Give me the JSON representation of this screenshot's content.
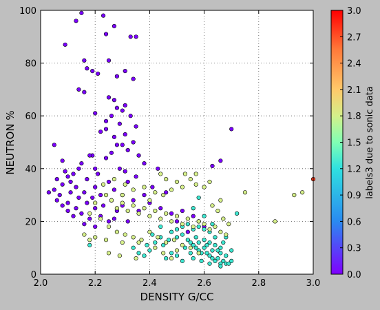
{
  "chart_data": {
    "type": "scatter",
    "title": "",
    "xlabel": "DENSITY  G/CC",
    "ylabel": "NEUTRON  %",
    "xlim": [
      2.0,
      3.0
    ],
    "ylim": [
      0,
      100
    ],
    "xticks": [
      "2.0",
      "2.2",
      "2.4",
      "2.6",
      "2.8",
      "3.0"
    ],
    "yticks": [
      "0",
      "20",
      "40",
      "60",
      "80",
      "100"
    ],
    "grid": true,
    "colorbar": {
      "label": "labels3 due to sonic data",
      "range": [
        0.0,
        3.0
      ],
      "ticks": [
        "0.0",
        "0.3",
        "0.6",
        "0.9",
        "1.2",
        "1.5",
        "1.8",
        "2.1",
        "2.4",
        "2.7",
        "3.0"
      ],
      "colormap": "rainbow"
    },
    "series": [
      {
        "label_value": 0.0,
        "color": "#7a00ff",
        "points": [
          [
            2.15,
            99
          ],
          [
            2.23,
            98
          ],
          [
            2.13,
            96
          ],
          [
            2.27,
            94
          ],
          [
            2.24,
            91
          ],
          [
            2.33,
            90
          ],
          [
            2.35,
            90
          ],
          [
            2.09,
            87
          ],
          [
            2.16,
            81
          ],
          [
            2.25,
            81
          ],
          [
            2.17,
            78
          ],
          [
            2.19,
            77
          ],
          [
            2.31,
            77
          ],
          [
            2.21,
            76
          ],
          [
            2.28,
            75
          ],
          [
            2.34,
            74
          ],
          [
            2.14,
            70
          ],
          [
            2.16,
            69
          ],
          [
            2.25,
            67
          ],
          [
            2.27,
            66
          ],
          [
            2.31,
            64
          ],
          [
            2.28,
            63
          ],
          [
            2.3,
            62
          ],
          [
            2.2,
            61
          ],
          [
            2.26,
            60
          ],
          [
            2.33,
            60
          ],
          [
            2.7,
            55
          ],
          [
            2.24,
            55
          ],
          [
            2.29,
            57
          ],
          [
            2.31,
            53
          ],
          [
            2.27,
            52
          ],
          [
            2.34,
            50
          ],
          [
            2.28,
            49
          ],
          [
            2.05,
            49
          ],
          [
            2.32,
            47
          ],
          [
            2.36,
            45
          ],
          [
            2.19,
            45
          ],
          [
            2.24,
            44
          ],
          [
            2.08,
            43
          ],
          [
            2.15,
            42
          ],
          [
            2.66,
            43
          ],
          [
            2.38,
            42
          ],
          [
            2.63,
            41
          ],
          [
            2.43,
            40
          ],
          [
            2.2,
            40
          ],
          [
            2.29,
            40
          ],
          [
            2.12,
            38
          ],
          [
            2.1,
            37
          ],
          [
            2.06,
            36
          ],
          [
            2.17,
            36
          ],
          [
            2.25,
            35
          ],
          [
            2.32,
            35
          ],
          [
            2.08,
            34
          ],
          [
            2.13,
            33
          ],
          [
            2.2,
            33
          ],
          [
            2.27,
            32
          ],
          [
            2.05,
            32
          ],
          [
            2.11,
            31
          ],
          [
            2.16,
            31
          ],
          [
            2.22,
            30
          ],
          [
            2.3,
            30
          ],
          [
            2.38,
            30
          ],
          [
            2.07,
            30
          ],
          [
            2.14,
            29
          ],
          [
            2.19,
            29
          ],
          [
            2.26,
            28
          ],
          [
            2.34,
            28
          ],
          [
            2.1,
            27
          ],
          [
            2.17,
            27
          ],
          [
            2.23,
            26
          ],
          [
            2.3,
            26
          ],
          [
            2.08,
            26
          ],
          [
            2.13,
            25
          ],
          [
            2.2,
            25
          ],
          [
            2.28,
            24
          ],
          [
            2.36,
            24
          ],
          [
            2.15,
            23
          ],
          [
            2.22,
            22
          ],
          [
            2.18,
            21
          ],
          [
            2.25,
            20
          ],
          [
            2.12,
            22
          ],
          [
            2.27,
            21
          ],
          [
            2.32,
            20
          ],
          [
            2.4,
            27
          ],
          [
            2.44,
            25
          ],
          [
            2.48,
            23
          ],
          [
            2.52,
            24
          ],
          [
            2.56,
            22
          ],
          [
            2.6,
            18
          ],
          [
            2.41,
            33
          ],
          [
            2.46,
            31
          ],
          [
            2.35,
            37
          ],
          [
            2.31,
            39
          ],
          [
            2.21,
            38
          ],
          [
            2.11,
            35
          ],
          [
            2.24,
            58
          ],
          [
            2.22,
            54
          ],
          [
            2.35,
            56
          ],
          [
            2.3,
            49
          ],
          [
            2.26,
            46
          ],
          [
            2.18,
            45
          ],
          [
            2.14,
            40
          ],
          [
            2.09,
            39
          ],
          [
            2.03,
            31
          ],
          [
            2.06,
            28
          ],
          [
            2.1,
            24
          ],
          [
            2.16,
            19
          ],
          [
            2.2,
            18
          ],
          [
            2.54,
            16
          ],
          [
            2.5,
            20
          ]
        ]
      },
      {
        "label_value": 1.2,
        "color": "#3de6d0",
        "points": [
          [
            2.44,
            18
          ],
          [
            2.48,
            16
          ],
          [
            2.5,
            14
          ],
          [
            2.52,
            15
          ],
          [
            2.54,
            13
          ],
          [
            2.55,
            12
          ],
          [
            2.56,
            11
          ],
          [
            2.57,
            10
          ],
          [
            2.58,
            9
          ],
          [
            2.59,
            8
          ],
          [
            2.6,
            10
          ],
          [
            2.61,
            8
          ],
          [
            2.62,
            7
          ],
          [
            2.63,
            6
          ],
          [
            2.64,
            5
          ],
          [
            2.65,
            6
          ],
          [
            2.66,
            4
          ],
          [
            2.67,
            5
          ],
          [
            2.68,
            4
          ],
          [
            2.57,
            14
          ],
          [
            2.6,
            13
          ],
          [
            2.62,
            12
          ],
          [
            2.64,
            11
          ],
          [
            2.65,
            9
          ],
          [
            2.66,
            8
          ],
          [
            2.63,
            9
          ],
          [
            2.61,
            11
          ],
          [
            2.58,
            12
          ],
          [
            2.55,
            8
          ],
          [
            2.53,
            10
          ],
          [
            2.5,
            7
          ],
          [
            2.48,
            8
          ],
          [
            2.45,
            11
          ],
          [
            2.42,
            12
          ],
          [
            2.4,
            9
          ],
          [
            2.38,
            7
          ],
          [
            2.36,
            8
          ],
          [
            2.34,
            10
          ],
          [
            2.46,
            6
          ],
          [
            2.52,
            5
          ],
          [
            2.56,
            6
          ],
          [
            2.59,
            5
          ],
          [
            2.62,
            4
          ],
          [
            2.66,
            3
          ],
          [
            2.69,
            4
          ],
          [
            2.7,
            5
          ],
          [
            2.68,
            7
          ],
          [
            2.66,
            10
          ],
          [
            2.64,
            14
          ],
          [
            2.62,
            16
          ],
          [
            2.6,
            17
          ],
          [
            2.58,
            18
          ],
          [
            2.56,
            17
          ],
          [
            2.54,
            19
          ],
          [
            2.52,
            18
          ],
          [
            2.5,
            17
          ],
          [
            2.47,
            13
          ],
          [
            2.44,
            14
          ],
          [
            2.41,
            15
          ],
          [
            2.39,
            11
          ],
          [
            2.18,
            11
          ],
          [
            2.58,
            29
          ],
          [
            2.72,
            23
          ],
          [
            2.68,
            14
          ],
          [
            2.7,
            9
          ],
          [
            2.67,
            12
          ],
          [
            2.63,
            19
          ],
          [
            2.58,
            20
          ],
          [
            2.6,
            22
          ],
          [
            2.56,
            25
          ]
        ]
      },
      {
        "label_value": 1.8,
        "color": "#d6f08a",
        "points": [
          [
            2.24,
            30
          ],
          [
            2.26,
            28
          ],
          [
            2.28,
            25
          ],
          [
            2.3,
            27
          ],
          [
            2.32,
            24
          ],
          [
            2.34,
            26
          ],
          [
            2.36,
            23
          ],
          [
            2.38,
            25
          ],
          [
            2.4,
            22
          ],
          [
            2.42,
            24
          ],
          [
            2.44,
            21
          ],
          [
            2.46,
            23
          ],
          [
            2.48,
            20
          ],
          [
            2.5,
            22
          ],
          [
            2.52,
            19
          ],
          [
            2.54,
            21
          ],
          [
            2.56,
            18
          ],
          [
            2.58,
            20
          ],
          [
            2.6,
            19
          ],
          [
            2.62,
            17
          ],
          [
            2.64,
            18
          ],
          [
            2.66,
            16
          ],
          [
            2.68,
            15
          ],
          [
            2.22,
            21
          ],
          [
            2.25,
            18
          ],
          [
            2.28,
            16
          ],
          [
            2.31,
            15
          ],
          [
            2.34,
            14
          ],
          [
            2.37,
            13
          ],
          [
            2.4,
            16
          ],
          [
            2.43,
            14
          ],
          [
            2.46,
            12
          ],
          [
            2.49,
            13
          ],
          [
            2.52,
            11
          ],
          [
            2.55,
            10
          ],
          [
            2.58,
            8
          ],
          [
            2.2,
            14
          ],
          [
            2.16,
            15
          ],
          [
            2.18,
            13
          ],
          [
            2.24,
            13
          ],
          [
            2.3,
            12
          ],
          [
            2.36,
            12
          ],
          [
            2.42,
            10
          ],
          [
            2.45,
            8
          ],
          [
            2.48,
            6
          ],
          [
            2.5,
            9
          ],
          [
            2.35,
            6
          ],
          [
            2.29,
            7
          ],
          [
            2.25,
            8
          ],
          [
            2.45,
            30
          ],
          [
            2.48,
            32
          ],
          [
            2.5,
            35
          ],
          [
            2.52,
            33
          ],
          [
            2.55,
            36
          ],
          [
            2.57,
            34
          ],
          [
            2.6,
            33
          ],
          [
            2.62,
            35
          ],
          [
            2.66,
            28
          ],
          [
            2.42,
            31
          ],
          [
            2.38,
            33
          ],
          [
            2.34,
            32
          ],
          [
            2.3,
            30
          ],
          [
            2.63,
            26
          ],
          [
            2.65,
            24
          ],
          [
            2.67,
            21
          ],
          [
            2.69,
            19
          ],
          [
            2.75,
            31
          ],
          [
            2.86,
            20
          ],
          [
            2.93,
            30
          ],
          [
            2.96,
            31
          ],
          [
            2.23,
            34
          ],
          [
            2.27,
            36
          ],
          [
            2.31,
            34
          ],
          [
            2.2,
            27
          ],
          [
            2.18,
            23
          ],
          [
            2.44,
            38
          ],
          [
            2.46,
            36
          ],
          [
            2.53,
            38
          ],
          [
            2.57,
            38
          ],
          [
            2.4,
            28
          ]
        ]
      }
    ],
    "extra_points": [
      {
        "x": 3.0,
        "y": 36,
        "color": "#ff3a1a"
      }
    ]
  }
}
